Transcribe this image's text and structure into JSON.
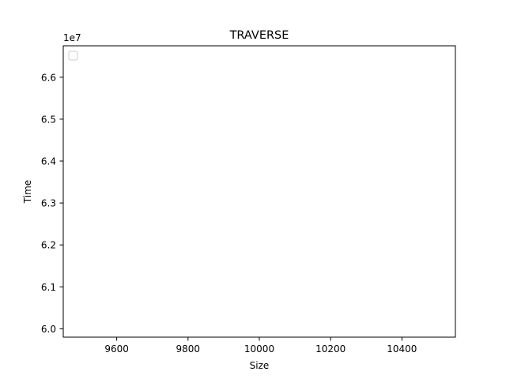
{
  "chart_data": {
    "type": "line",
    "title": "TRAVERSE",
    "xlabel": "Size",
    "ylabel": "Time",
    "y_offset_label": "1e7",
    "xlim": [
      9450,
      10550
    ],
    "ylim": [
      5.98,
      6.675
    ],
    "y_scale_factor": 10000000,
    "xticks": [
      9600,
      9800,
      10000,
      10200,
      10400
    ],
    "yticks": [
      6.0,
      6.1,
      6.2,
      6.3,
      6.4,
      6.5,
      6.6
    ],
    "xtick_labels": [
      "9600",
      "9800",
      "10000",
      "10200",
      "10400"
    ],
    "ytick_labels": [
      "6.0",
      "6.1",
      "6.2",
      "6.3",
      "6.4",
      "6.5",
      "6.6"
    ],
    "series": [],
    "grid": false,
    "legend": {
      "placement": "upper-left",
      "entries": []
    }
  }
}
